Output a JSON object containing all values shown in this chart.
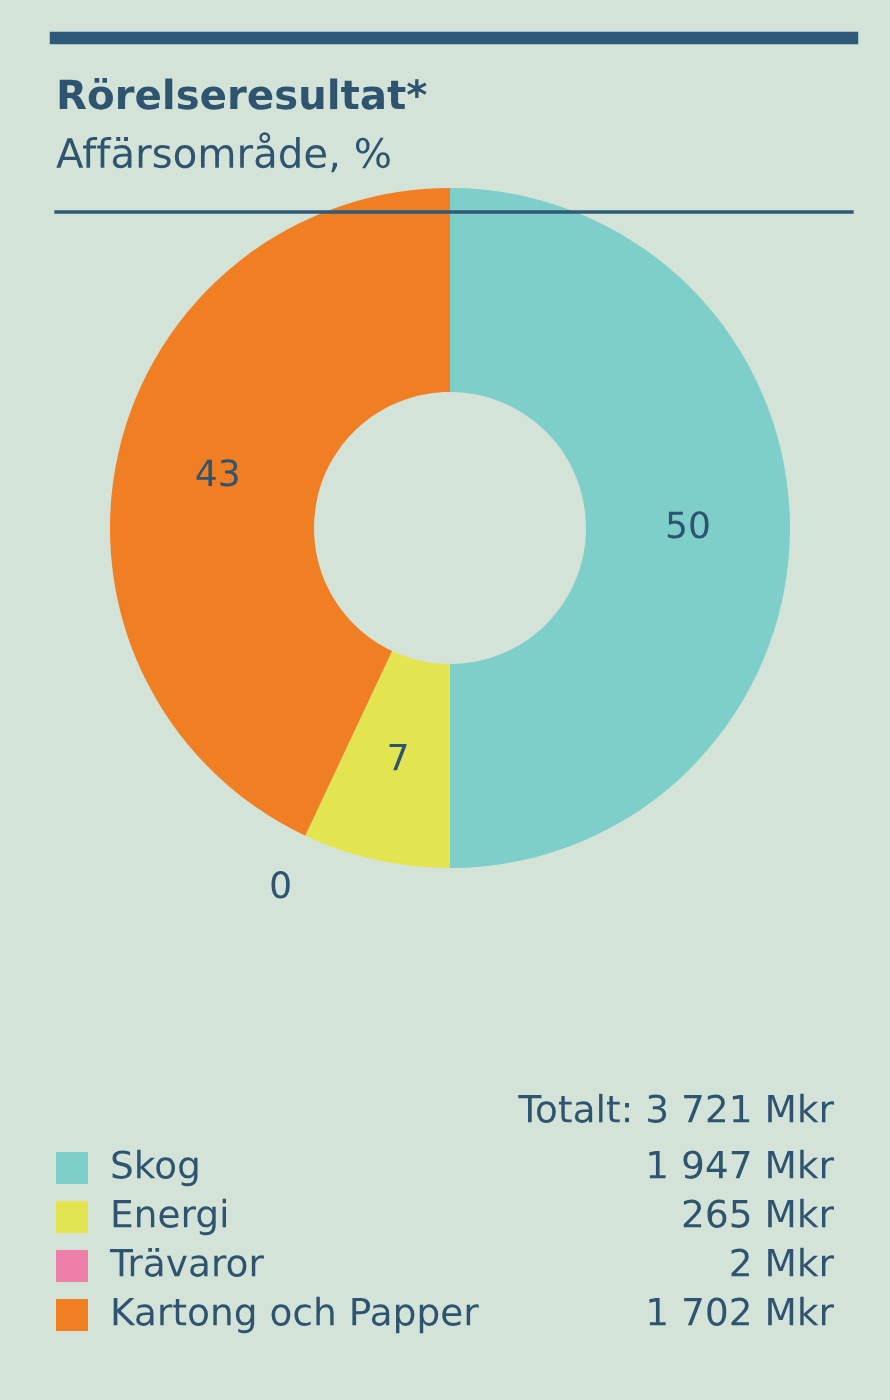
{
  "chart_data": {
    "type": "donut",
    "title": "Rörelseresultat*",
    "subtitle": "Affärsområde, %",
    "categories": [
      "Skog",
      "Energi",
      "Trävaror",
      "Kartong och Papper"
    ],
    "values": [
      50,
      7,
      0,
      43
    ],
    "value_labels": [
      "50",
      "7",
      "0",
      "43"
    ],
    "colors": [
      "#7ecfc9",
      "#e3e550",
      "#ef7fa8",
      "#f07f24"
    ],
    "legend": "bottom",
    "annotations": [
      "Totalt: 3 721 Mkr",
      "1 947 Mkr",
      "265 Mkr",
      "2 Mkr",
      "1 702 Mkr"
    ]
  }
}
